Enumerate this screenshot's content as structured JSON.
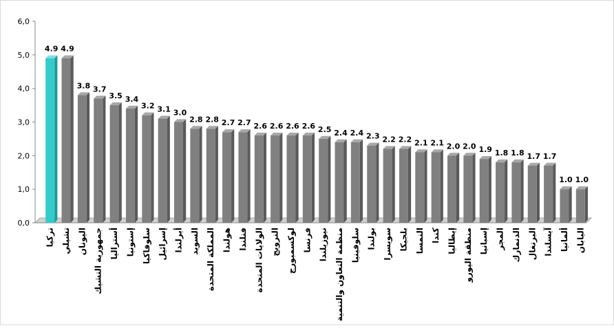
{
  "chart_data": {
    "type": "bar",
    "title": "",
    "xlabel": "",
    "ylabel": "",
    "ylim": [
      0,
      6
    ],
    "yticks": [
      "0,0",
      "1,0",
      "2,0",
      "3,0",
      "4,0",
      "5,0",
      "6,0"
    ],
    "grid": false,
    "legend": "none",
    "categories": [
      "تركيا",
      "تشيلي",
      "اليونان",
      "جمهورية التشيك",
      "أستراليا",
      "إستونيا",
      "سلوفاكيا",
      "إسرائيل",
      "أيرلندا",
      "السويد",
      "المملكة المتحدة",
      "هولندا",
      "فنلندا",
      "الولايات المتحدة",
      "النرويج",
      "لوكسمبورج",
      "فرنسا",
      "نيوزيلندا",
      "منظمة التعاون والتنمية",
      "سلوفينيا",
      "بولندا",
      "سويسرا",
      "بلجيكا",
      "النمسا",
      "كندا",
      "إيطاليا",
      "منطقة اليورو",
      "إسبانيا",
      "المجر",
      "الدنمارك",
      "البرتغال",
      "آيسلندا",
      "ألمانيا",
      "اليابان"
    ],
    "values": [
      4.9,
      4.9,
      3.8,
      3.7,
      3.5,
      3.4,
      3.2,
      3.1,
      3.0,
      2.8,
      2.8,
      2.7,
      2.7,
      2.6,
      2.6,
      2.6,
      2.6,
      2.5,
      2.4,
      2.4,
      2.3,
      2.2,
      2.2,
      2.1,
      2.1,
      2.0,
      2.0,
      1.9,
      1.8,
      1.8,
      1.7,
      1.7,
      1.0,
      1.0
    ],
    "data_labels": [
      "4.9",
      "4.9",
      "3.8",
      "3.7",
      "3.5",
      "3.4",
      "3.2",
      "3.1",
      "3.0",
      "2.8",
      "2.8",
      "2.7",
      "2.7",
      "2.6",
      "2.6",
      "2.6",
      "2.6",
      "2.5",
      "2.4",
      "2.4",
      "2.3",
      "2.2",
      "2.2",
      "2.1",
      "2.1",
      "2.0",
      "2.0",
      "1.9",
      "1.8",
      "1.8",
      "1.7",
      "1.7",
      "1.0",
      "1.0"
    ],
    "colors": {
      "highlight": "#33CCCC",
      "default": "#808080",
      "axis": "#868686"
    },
    "highlight_index": 0
  }
}
